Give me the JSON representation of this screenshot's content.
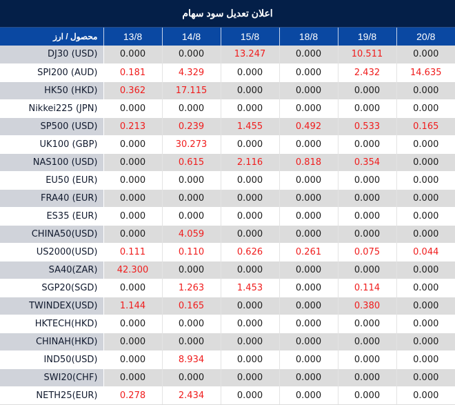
{
  "title": "اعلان تعدیل سود سهام",
  "colors": {
    "title_bg": "#041f48",
    "header_bg": "#0a48a2",
    "row_alt_bg": "#dcdcdc",
    "product_alt_bg": "#d0d3da",
    "positive_value": "#f01c1c",
    "zero_value": "#1a1a1a"
  },
  "table": {
    "headers": [
      "محصول / ارز",
      "13/8",
      "14/8",
      "15/8",
      "18/8",
      "19/8",
      "20/8"
    ],
    "rows": [
      {
        "product": "DJ30 (USD)",
        "values": [
          "0.000",
          "0.000",
          "13.247",
          "0.000",
          "10.511",
          "0.000"
        ]
      },
      {
        "product": "SPI200 (AUD)",
        "values": [
          "0.181",
          "4.329",
          "0.000",
          "0.000",
          "2.432",
          "14.635"
        ]
      },
      {
        "product": "HK50 (HKD)",
        "values": [
          "0.362",
          "17.115",
          "0.000",
          "0.000",
          "0.000",
          "0.000"
        ]
      },
      {
        "product": "Nikkei225 (JPN)",
        "values": [
          "0.000",
          "0.000",
          "0.000",
          "0.000",
          "0.000",
          "0.000"
        ]
      },
      {
        "product": "SP500 (USD)",
        "values": [
          "0.213",
          "0.239",
          "1.455",
          "0.492",
          "0.533",
          "0.165"
        ]
      },
      {
        "product": "UK100 (GBP)",
        "values": [
          "0.000",
          "30.273",
          "0.000",
          "0.000",
          "0.000",
          "0.000"
        ]
      },
      {
        "product": "NAS100 (USD)",
        "values": [
          "0.000",
          "0.615",
          "2.116",
          "0.818",
          "0.354",
          "0.000"
        ]
      },
      {
        "product": "EU50 (EUR)",
        "values": [
          "0.000",
          "0.000",
          "0.000",
          "0.000",
          "0.000",
          "0.000"
        ]
      },
      {
        "product": "FRA40 (EUR)",
        "values": [
          "0.000",
          "0.000",
          "0.000",
          "0.000",
          "0.000",
          "0.000"
        ]
      },
      {
        "product": "ES35 (EUR)",
        "values": [
          "0.000",
          "0.000",
          "0.000",
          "0.000",
          "0.000",
          "0.000"
        ]
      },
      {
        "product": "CHINA50(USD)",
        "values": [
          "0.000",
          "4.059",
          "0.000",
          "0.000",
          "0.000",
          "0.000"
        ]
      },
      {
        "product": "US2000(USD)",
        "values": [
          "0.111",
          "0.110",
          "0.626",
          "0.261",
          "0.075",
          "0.044"
        ]
      },
      {
        "product": "SA40(ZAR)",
        "values": [
          "42.300",
          "0.000",
          "0.000",
          "0.000",
          "0.000",
          "0.000"
        ]
      },
      {
        "product": "SGP20(SGD)",
        "values": [
          "0.000",
          "1.263",
          "1.453",
          "0.000",
          "0.114",
          "0.000"
        ]
      },
      {
        "product": "TWINDEX(USD)",
        "values": [
          "1.144",
          "0.165",
          "0.000",
          "0.000",
          "0.380",
          "0.000"
        ]
      },
      {
        "product": "HKTECH(HKD)",
        "values": [
          "0.000",
          "0.000",
          "0.000",
          "0.000",
          "0.000",
          "0.000"
        ]
      },
      {
        "product": "CHINAH(HKD)",
        "values": [
          "0.000",
          "0.000",
          "0.000",
          "0.000",
          "0.000",
          "0.000"
        ]
      },
      {
        "product": "IND50(USD)",
        "values": [
          "0.000",
          "8.934",
          "0.000",
          "0.000",
          "0.000",
          "0.000"
        ]
      },
      {
        "product": "SWI20(CHF)",
        "values": [
          "0.000",
          "0.000",
          "0.000",
          "0.000",
          "0.000",
          "0.000"
        ]
      },
      {
        "product": "NETH25(EUR)",
        "values": [
          "0.278",
          "2.434",
          "0.000",
          "0.000",
          "0.000",
          "0.000"
        ]
      }
    ]
  }
}
